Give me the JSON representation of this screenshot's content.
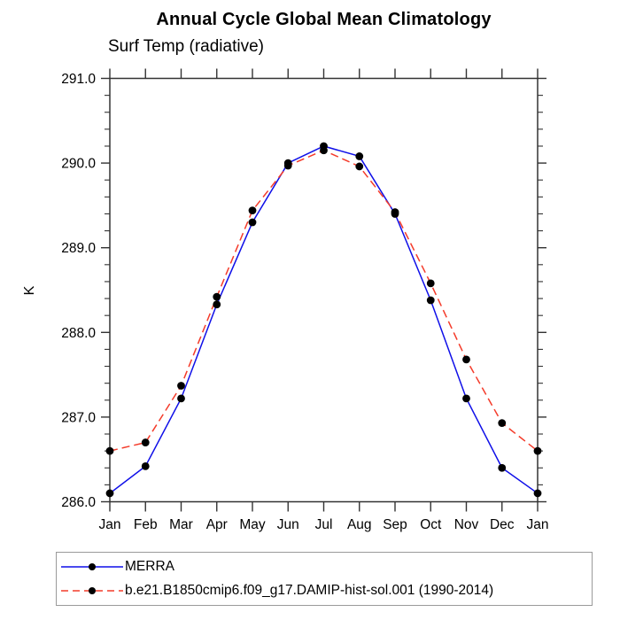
{
  "chart_data": {
    "type": "line",
    "title": "Annual Cycle Global Mean Climatology",
    "subtitle": "Surf Temp (radiative)",
    "ylabel": "K",
    "categories": [
      "Jan",
      "Feb",
      "Mar",
      "Apr",
      "May",
      "Jun",
      "Jul",
      "Aug",
      "Sep",
      "Oct",
      "Nov",
      "Dec",
      "Jan"
    ],
    "ylim": [
      286.0,
      291.0
    ],
    "ytick_step": 1.0,
    "yminor_step": 0.2,
    "ytick_label_format": "one-decimal",
    "grid": false,
    "legend_position": "bottom-left-box",
    "axis_color": "#333333",
    "series": [
      {
        "name": "MERRA",
        "line_color": "#0f0fe8",
        "line_style": "solid",
        "marker": "filled-circle",
        "marker_color": "#000000",
        "values": [
          286.1,
          286.42,
          287.22,
          288.33,
          289.3,
          290.0,
          290.2,
          290.08,
          289.4,
          288.38,
          287.22,
          286.4,
          286.1
        ]
      },
      {
        "name": "b.e21.B1850cmip6.f09_g17.DAMIP-hist-sol.001 (1990-2014)",
        "line_color": "#f43b2a",
        "line_style": "dashed",
        "marker": "filled-circle",
        "marker_color": "#000000",
        "values": [
          286.6,
          286.7,
          287.37,
          288.42,
          289.44,
          289.97,
          290.15,
          289.96,
          289.42,
          288.58,
          287.68,
          286.93,
          286.6
        ]
      }
    ]
  }
}
